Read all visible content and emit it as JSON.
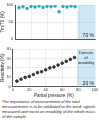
{
  "chart_data": [
    {
      "type": "scatter",
      "y_label": "Tm/T0 (%)",
      "x": [
        5,
        10,
        15,
        20,
        25,
        30,
        35,
        40,
        45,
        50,
        55,
        60,
        65,
        70,
        75
      ],
      "values": [
        92,
        95,
        90,
        96,
        94,
        97,
        93,
        96,
        95,
        97,
        80,
        96,
        94,
        97,
        95
      ],
      "color": "#2aa7c9",
      "marker": "circle",
      "xlim": [
        0,
        100
      ],
      "xticks": [
        0,
        20,
        40,
        60,
        80,
        100
      ],
      "ylim": [
        0,
        100
      ],
      "yticks": [
        0,
        50,
        100
      ],
      "grid": true,
      "tick_labels": "y",
      "annotations": [
        "70 %"
      ],
      "region": {
        "x": [
          78,
          100
        ],
        "label": ""
      }
    },
    {
      "type": "scatter",
      "y_label": "Reactivity (%)",
      "x_label": "Partial pressure (%)",
      "x": [
        5,
        10,
        15,
        20,
        25,
        30,
        35,
        40,
        45,
        50,
        55,
        60,
        65,
        70,
        75
      ],
      "values": [
        6,
        8,
        10,
        11,
        13,
        15,
        16,
        18,
        20,
        21,
        23,
        25,
        27,
        29,
        31
      ],
      "color": "#333333",
      "marker": "circle",
      "xlim": [
        0,
        100
      ],
      "xticks": [
        0,
        20,
        40,
        60,
        80,
        100
      ],
      "ylim": [
        0,
        40
      ],
      "yticks": [
        0,
        10,
        20,
        30,
        40
      ],
      "grid": true,
      "annotations": [
        "20 %"
      ],
      "region": {
        "x": [
          78,
          100
        ],
        "label": "Domain of instability"
      }
    }
  ],
  "caption": "The importance of measurement of the total measurements is to be attributed to the weak signals measured and not to an instability of the whole mass of the sample"
}
